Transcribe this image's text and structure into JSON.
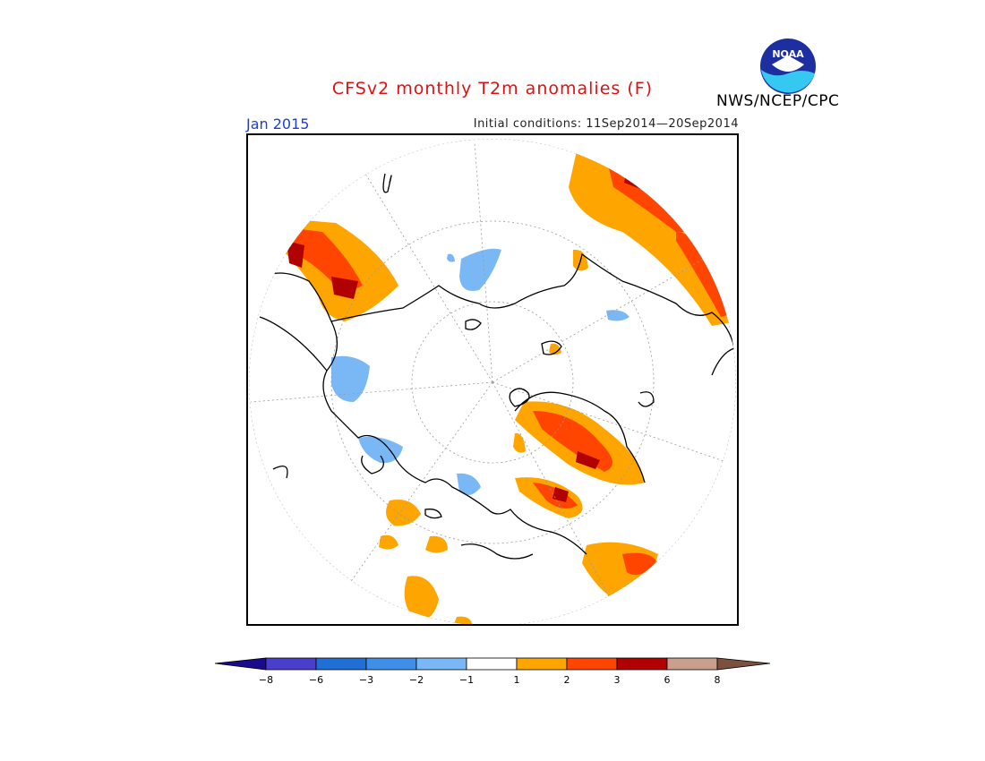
{
  "header": {
    "title": "CFSv2 monthly T2m anomalies (F)",
    "month": "Jan 2015",
    "initial_conditions": "Initial conditions: 11Sep2014—20Sep2014",
    "org": "NWS/NCEP/CPC",
    "logo_text": "NOAA"
  },
  "colorbar": {
    "ticks": [
      "−8",
      "−6",
      "−3",
      "−2",
      "−1",
      "1",
      "2",
      "3",
      "6",
      "8"
    ],
    "colors": [
      "#1a0a8c",
      "#4a3fcc",
      "#1f6fd4",
      "#3f8fe8",
      "#7ab8f5",
      "#ffffff",
      "#ffa500",
      "#ff4500",
      "#b00000",
      "#c8a08c",
      "#7a5040"
    ]
  },
  "map": {
    "projection": "polar stereographic (north)",
    "warm_colors": {
      "w1": "#ffa500",
      "w2": "#ff4500",
      "w3": "#b00000"
    },
    "cool_colors": {
      "c1": "#7ab8f5"
    }
  }
}
